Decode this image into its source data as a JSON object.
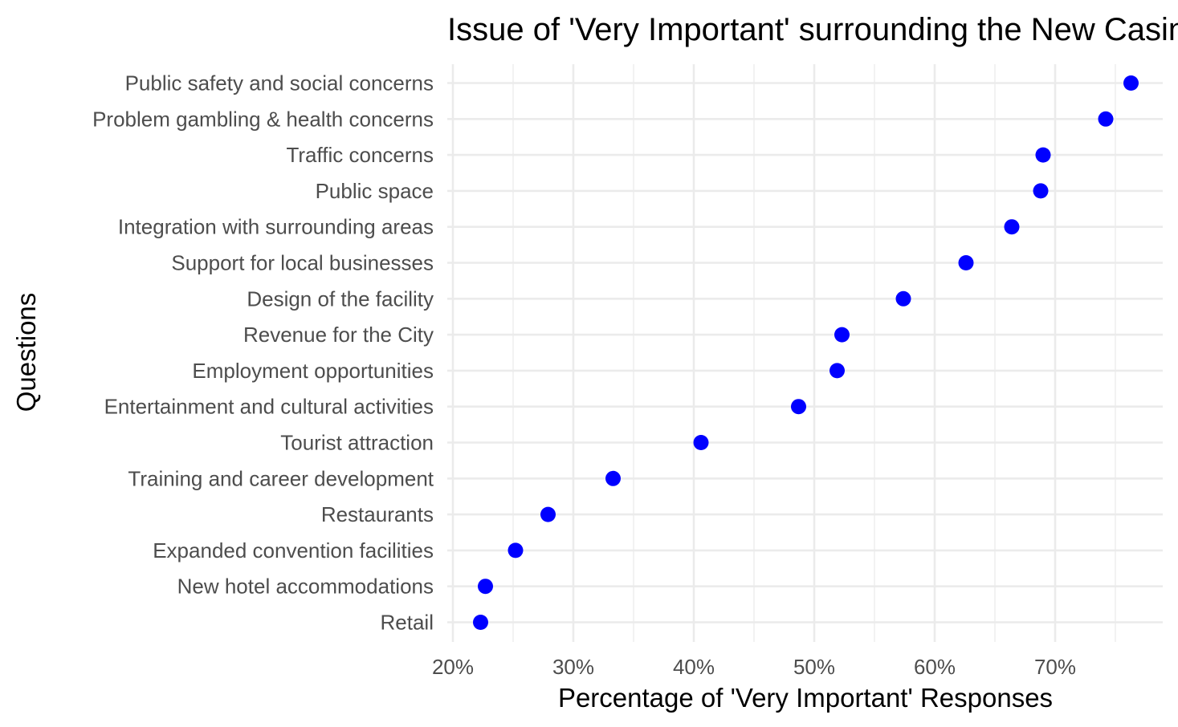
{
  "chart_data": {
    "type": "scatter",
    "title": "Issue of 'Very Important' surrounding the New Casino",
    "xlabel": "Percentage of 'Very Important' Responses",
    "ylabel": "Questions",
    "xlim": [
      0.2,
      0.79
    ],
    "x_ticks": [
      0.2,
      0.3,
      0.4,
      0.5,
      0.6,
      0.7
    ],
    "x_tick_labels": [
      "20%",
      "30%",
      "40%",
      "50%",
      "60%",
      "70%"
    ],
    "grid": true,
    "legend": "none",
    "point_color": "#0000ff",
    "categories": [
      "Public safety and social concerns",
      "Problem gambling & health concerns",
      "Traffic concerns",
      "Public space",
      "Integration with surrounding areas",
      "Support for local businesses",
      "Design of the facility",
      "Revenue for the City",
      "Employment opportunities",
      "Entertainment and cultural activities",
      "Tourist attraction",
      "Training and career development",
      "Restaurants",
      "Expanded convention facilities",
      "New hotel accommodations",
      "Retail"
    ],
    "values": [
      0.763,
      0.742,
      0.69,
      0.688,
      0.664,
      0.626,
      0.574,
      0.523,
      0.519,
      0.487,
      0.406,
      0.333,
      0.279,
      0.252,
      0.227,
      0.223
    ]
  }
}
